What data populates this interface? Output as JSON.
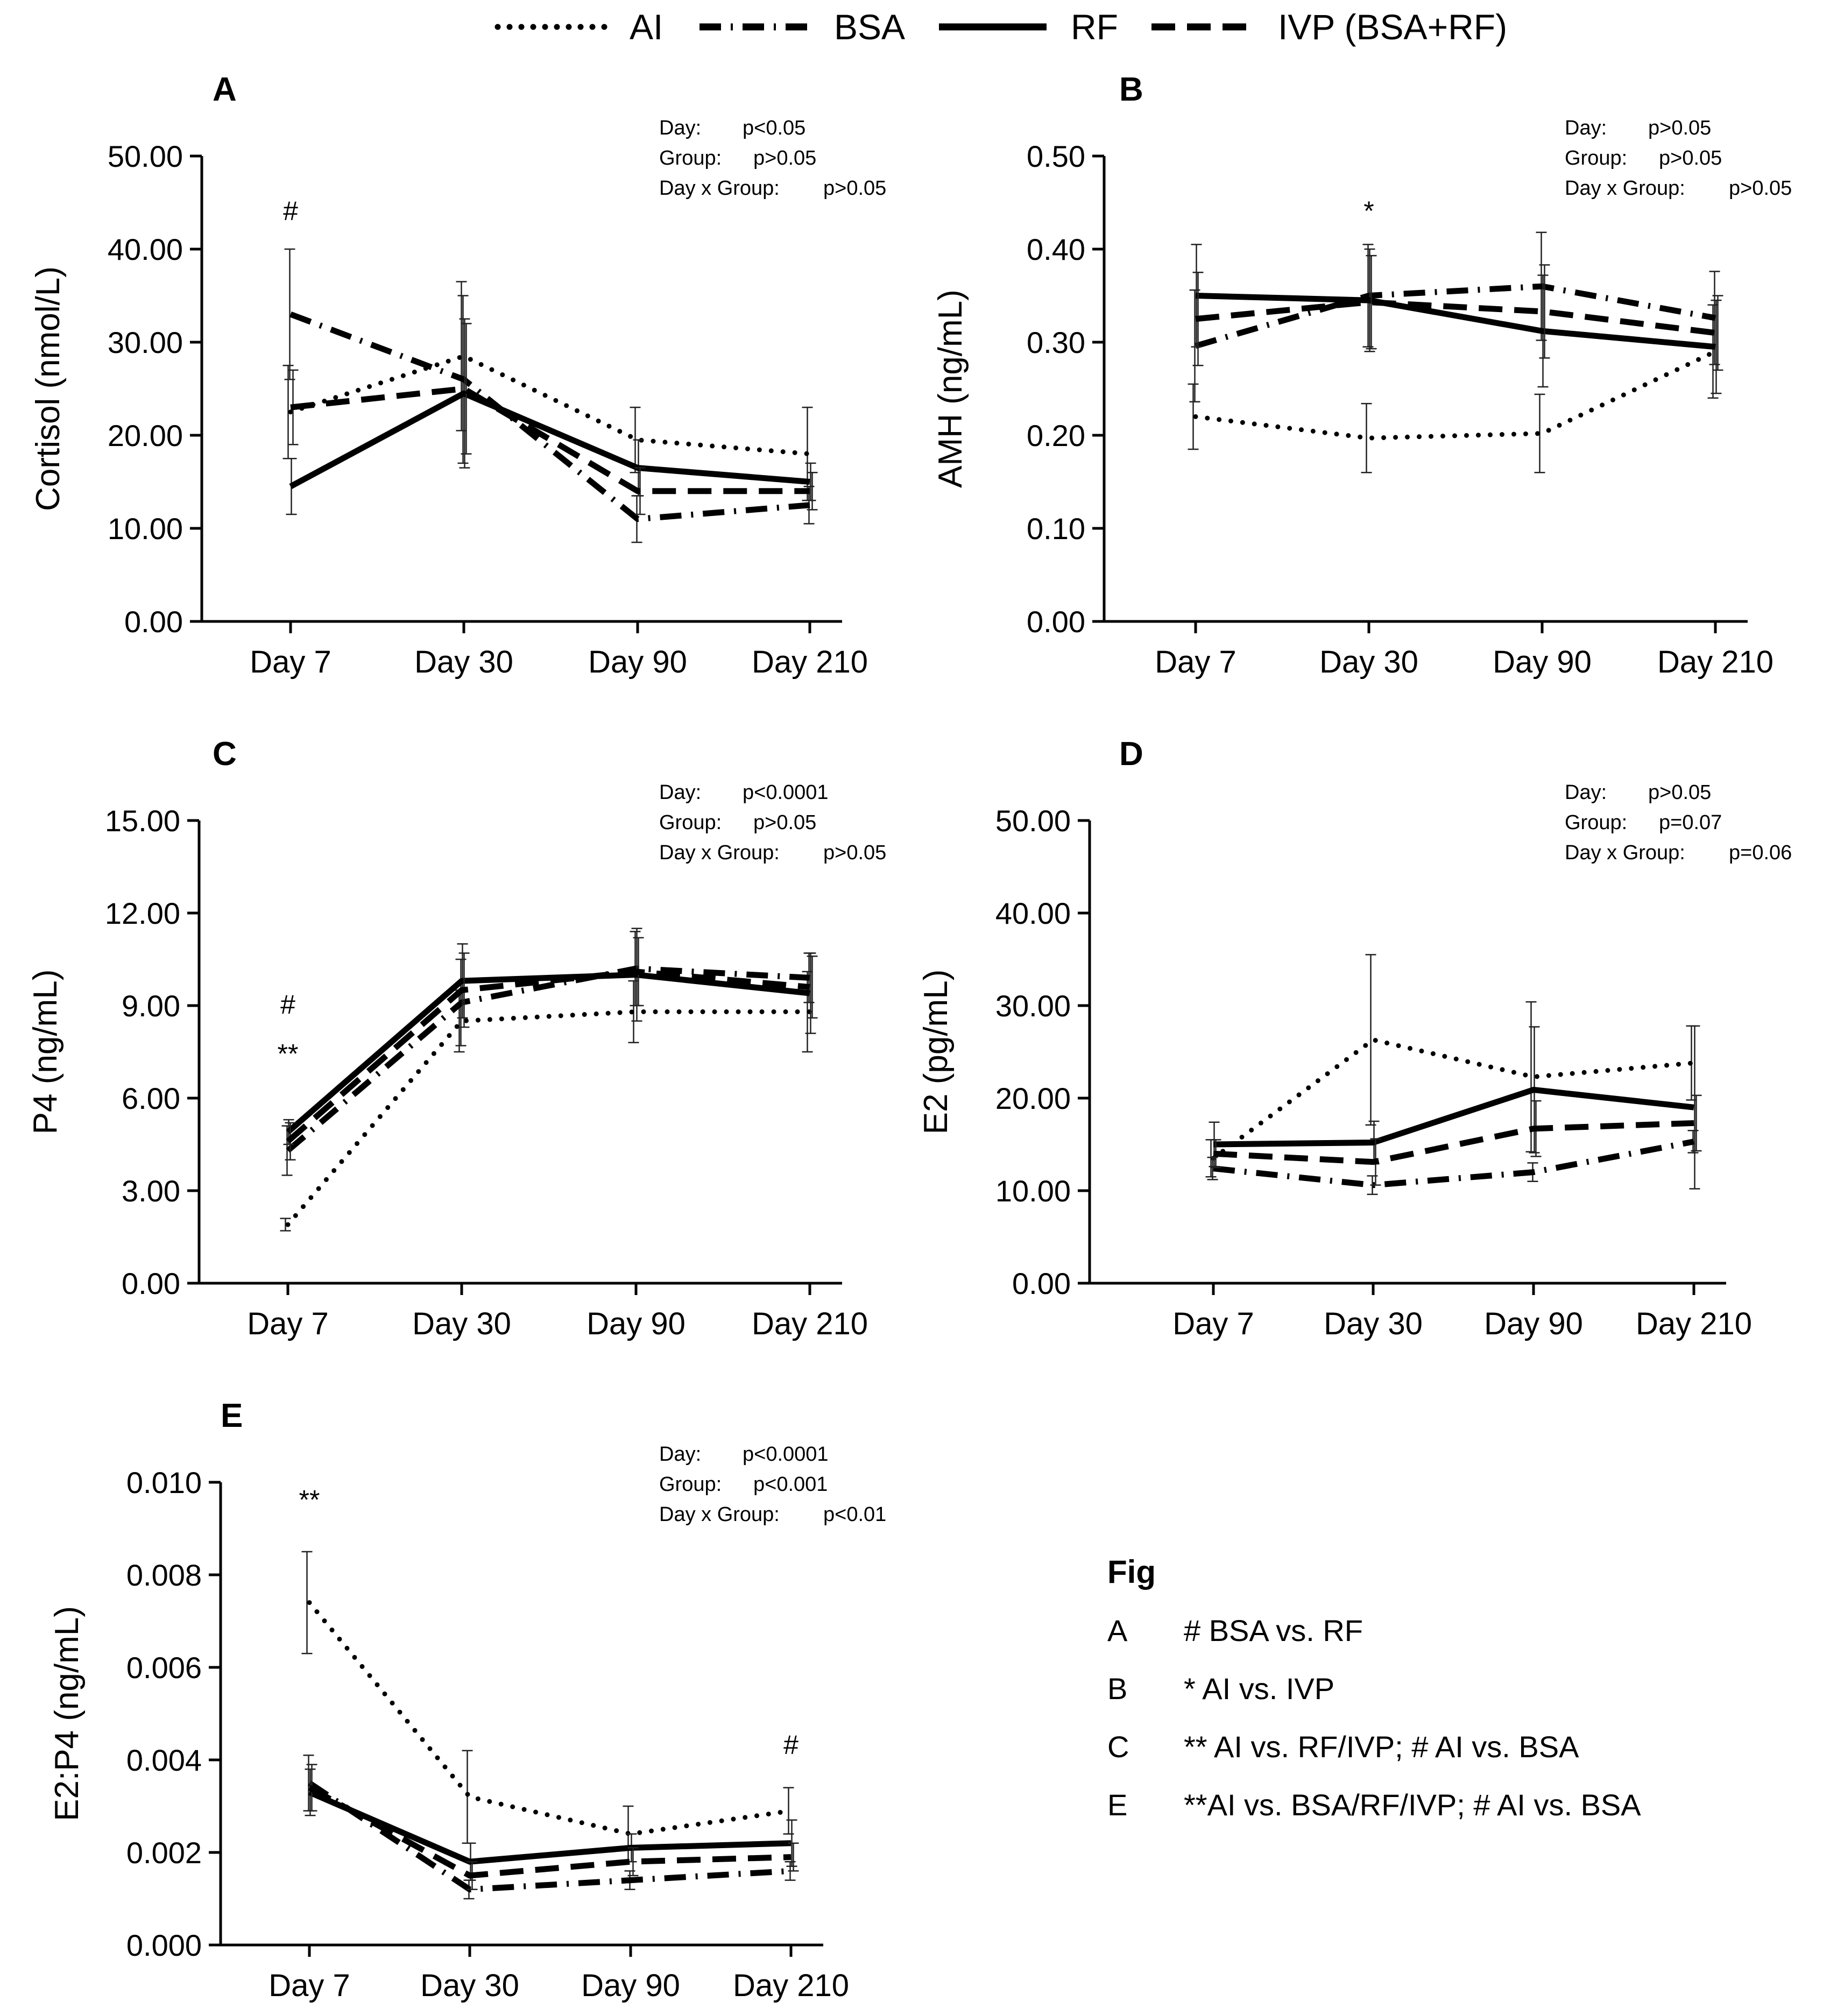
{
  "legend": {
    "items": [
      {
        "label": "AI",
        "style": "dotted"
      },
      {
        "label": "BSA",
        "style": "dashdot"
      },
      {
        "label": "RF",
        "style": "solid"
      },
      {
        "label": "IVP (BSA+RF)",
        "style": "dashed"
      }
    ]
  },
  "chart_data": [
    {
      "panel": "A",
      "type": "line",
      "categories": [
        "Day 7",
        "Day 30",
        "Day 90",
        "Day 210"
      ],
      "ylabel": "Cortisol (nmol/L)",
      "ylim": [
        0,
        50
      ],
      "yticks": [
        "0.00",
        "10.00",
        "20.00",
        "30.00",
        "40.00",
        "50.00"
      ],
      "stats": [
        {
          "label": "Day:",
          "value": "p<0.05"
        },
        {
          "label": "Group:",
          "value": "p>0.05"
        },
        {
          "label": "Day x Group:",
          "value": "p>0.05"
        }
      ],
      "annotations": [
        {
          "text": "#",
          "category": 0,
          "y": 44
        }
      ],
      "series": [
        {
          "name": "AI",
          "values": [
            22.5,
            28.5,
            19.5,
            18.0
          ],
          "errors": [
            5,
            8,
            3.5,
            5
          ]
        },
        {
          "name": "BSA",
          "values": [
            33.0,
            26.0,
            11.0,
            12.5
          ],
          "errors": [
            7,
            9,
            2.5,
            2
          ]
        },
        {
          "name": "RF",
          "values": [
            14.5,
            24.5,
            16.5,
            15.0
          ],
          "errors": [
            3,
            8,
            3,
            2
          ]
        },
        {
          "name": "IVP (BSA+RF)",
          "values": [
            23.0,
            25.0,
            14.0,
            14.0
          ],
          "errors": [
            4,
            7,
            2.5,
            2
          ]
        }
      ]
    },
    {
      "panel": "B",
      "type": "line",
      "categories": [
        "Day 7",
        "Day 30",
        "Day 90",
        "Day 210"
      ],
      "ylabel": "AMH (ng/mL)",
      "ylim": [
        0,
        0.5
      ],
      "yticks": [
        "0.00",
        "0.10",
        "0.20",
        "0.30",
        "0.40",
        "0.50"
      ],
      "stats": [
        {
          "label": "Day:",
          "value": "p>0.05"
        },
        {
          "label": "Group:",
          "value": "p>0.05"
        },
        {
          "label": "Day x Group:",
          "value": "p>0.05"
        }
      ],
      "annotations": [
        {
          "text": "*",
          "category": 1,
          "y": 0.44
        }
      ],
      "series": [
        {
          "name": "AI",
          "values": [
            0.22,
            0.197,
            0.202,
            0.29
          ],
          "errors": [
            0.035,
            0.037,
            0.042,
            0.05
          ]
        },
        {
          "name": "BSA",
          "values": [
            0.296,
            0.35,
            0.36,
            0.326
          ],
          "errors": [
            0.06,
            0.055,
            0.058,
            0.05
          ]
        },
        {
          "name": "RF",
          "values": [
            0.35,
            0.345,
            0.312,
            0.295
          ],
          "errors": [
            0.055,
            0.055,
            0.06,
            0.05
          ]
        },
        {
          "name": "IVP (BSA+RF)",
          "values": [
            0.325,
            0.343,
            0.333,
            0.31
          ],
          "errors": [
            0.05,
            0.05,
            0.05,
            0.04
          ]
        }
      ]
    },
    {
      "panel": "C",
      "type": "line",
      "categories": [
        "Day 7",
        "Day 30",
        "Day 90",
        "Day 210"
      ],
      "ylabel": "P4 (ng/mL)",
      "ylim": [
        0,
        15
      ],
      "yticks": [
        "0.00",
        "3.00",
        "6.00",
        "9.00",
        "12.00",
        "15.00"
      ],
      "stats": [
        {
          "label": "Day:",
          "value": "p<0.0001"
        },
        {
          "label": "Group:",
          "value": "p>0.05"
        },
        {
          "label": "Day x Group:",
          "value": "p>0.05"
        }
      ],
      "annotations": [
        {
          "text": "#",
          "category": 0,
          "y": 9.0
        },
        {
          "text": "**",
          "category": 0,
          "y": 7.4
        }
      ],
      "series": [
        {
          "name": "AI",
          "values": [
            1.9,
            8.5,
            8.8,
            8.8
          ],
          "errors": [
            0.2,
            1.0,
            1.0,
            1.3
          ]
        },
        {
          "name": "BSA",
          "values": [
            4.3,
            9.1,
            10.2,
            9.9
          ],
          "errors": [
            0.8,
            1.4,
            1.2,
            0.8
          ]
        },
        {
          "name": "RF",
          "values": [
            4.9,
            9.8,
            10.0,
            9.4
          ],
          "errors": [
            0.4,
            1.2,
            1.5,
            1.3
          ]
        },
        {
          "name": "IVP (BSA+RF)",
          "values": [
            4.6,
            9.5,
            10.1,
            9.6
          ],
          "errors": [
            0.6,
            1.2,
            1.1,
            1.0
          ]
        }
      ]
    },
    {
      "panel": "D",
      "type": "line",
      "categories": [
        "Day 7",
        "Day 30",
        "Day 90",
        "Day 210"
      ],
      "ylabel": "E2 (pg/mL)",
      "ylim": [
        0,
        50
      ],
      "yticks": [
        "0.00",
        "10.00",
        "20.00",
        "30.00",
        "40.00",
        "50.00"
      ],
      "stats": [
        {
          "label": "Day:",
          "value": "p>0.05"
        },
        {
          "label": "Group:",
          "value": "p=0.07"
        },
        {
          "label": "Day x Group:",
          "value": "p=0.06"
        }
      ],
      "annotations": [],
      "series": [
        {
          "name": "AI",
          "values": [
            13.5,
            26.3,
            22.3,
            23.8
          ],
          "errors": [
            2,
            9.2,
            8.1,
            4
          ]
        },
        {
          "name": "BSA",
          "values": [
            12.4,
            10.6,
            12.0,
            15.3
          ],
          "errors": [
            1.2,
            1,
            1,
            1.2
          ]
        },
        {
          "name": "RF",
          "values": [
            15.0,
            15.2,
            20.9,
            19.0
          ],
          "errors": [
            2.4,
            2.3,
            6.8,
            8.8
          ]
        },
        {
          "name": "IVP (BSA+RF)",
          "values": [
            14.0,
            13.1,
            16.7,
            17.3
          ],
          "errors": [
            1.5,
            2.5,
            3,
            3
          ]
        }
      ]
    },
    {
      "panel": "E",
      "type": "line",
      "categories": [
        "Day 7",
        "Day 30",
        "Day 90",
        "Day 210"
      ],
      "ylabel": "E2:P4 (ng/mL)",
      "ylim": [
        0,
        0.01
      ],
      "yticks": [
        "0.000",
        "0.002",
        "0.004",
        "0.006",
        "0.008",
        "0.010"
      ],
      "stats": [
        {
          "label": "Day:",
          "value": "p<0.0001"
        },
        {
          "label": "Group:",
          "value": "p<0.001"
        },
        {
          "label": "Day x Group:",
          "value": "p<0.01"
        }
      ],
      "annotations": [
        {
          "text": "**",
          "category": 0,
          "y": 0.0096
        },
        {
          "text": "#",
          "category": 3,
          "y": 0.0043
        }
      ],
      "series": [
        {
          "name": "AI",
          "values": [
            0.0074,
            0.0032,
            0.0024,
            0.0029
          ],
          "errors": [
            0.0011,
            0.001,
            0.0006,
            0.0005
          ]
        },
        {
          "name": "BSA",
          "values": [
            0.0035,
            0.0012,
            0.0014,
            0.0016
          ],
          "errors": [
            0.0006,
            0.0002,
            0.0002,
            0.0002
          ]
        },
        {
          "name": "RF",
          "values": [
            0.0033,
            0.0018,
            0.0021,
            0.0022
          ],
          "errors": [
            0.0005,
            0.0004,
            0.0003,
            0.0005
          ]
        },
        {
          "name": "IVP (BSA+RF)",
          "values": [
            0.0034,
            0.0015,
            0.0018,
            0.0019
          ],
          "errors": [
            0.0005,
            0.0003,
            0.0003,
            0.0003
          ]
        }
      ]
    }
  ],
  "notes": {
    "title": "Fig",
    "items": [
      {
        "panel": "A",
        "text": "# BSA vs. RF"
      },
      {
        "panel": "B",
        "text": "* AI vs. IVP"
      },
      {
        "panel": "C",
        "text": "** AI vs. RF/IVP; # AI vs. BSA"
      },
      {
        "panel": "E",
        "text": "**AI vs. BSA/RF/IVP; # AI vs. BSA"
      }
    ]
  }
}
